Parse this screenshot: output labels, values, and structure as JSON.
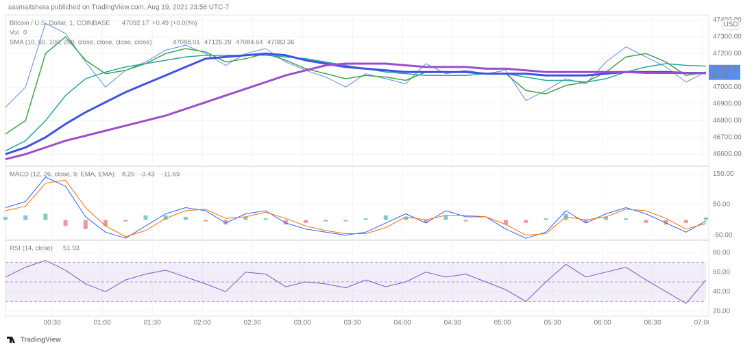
{
  "header": {
    "publisher": "sasmaitshera published on TradingView.com, Aug 19, 2021 23:56 UTC-7"
  },
  "footer": {
    "brand": "TradingView"
  },
  "time_axis": {
    "x": [
      2,
      14,
      26,
      38,
      50,
      62,
      74,
      86,
      98,
      110,
      122,
      134,
      146,
      158,
      170,
      182,
      194,
      206,
      218,
      230,
      242,
      254,
      266,
      278,
      290,
      302,
      314,
      326,
      338,
      350,
      362,
      374,
      386,
      398,
      410,
      422
    ],
    "xlim": [
      2,
      422
    ],
    "xticks": [
      {
        "value": 30,
        "label": "00:30"
      },
      {
        "value": 60,
        "label": "01:00"
      },
      {
        "value": 90,
        "label": "01:30"
      },
      {
        "value": 120,
        "label": "02:00"
      },
      {
        "value": 150,
        "label": "02:30"
      },
      {
        "value": 180,
        "label": "03:00"
      },
      {
        "value": 210,
        "label": "03:30"
      },
      {
        "value": 240,
        "label": "04:00"
      },
      {
        "value": 270,
        "label": "04:30"
      },
      {
        "value": 300,
        "label": "05:00"
      },
      {
        "value": 330,
        "label": "05:30"
      },
      {
        "value": 360,
        "label": "06:00"
      },
      {
        "value": 390,
        "label": "06:30"
      },
      {
        "value": 420,
        "label": "07:00"
      }
    ],
    "grid": true
  },
  "chart_data": [
    {
      "type": "line",
      "symbol": "Bitcoin / U.S. Dollar, 1, COINBASE",
      "change": "+0.49 (+0.00%)",
      "volume_label": "Vol",
      "volume_value": 0,
      "indicator": "SMA (10, 50, 100, 200, close, close, close, close)",
      "currency": "USD",
      "price_tag_time": "00:58",
      "ylim": [
        46540,
        47430
      ],
      "yticks": [
        {
          "value": 46600,
          "label": "46600.00"
        },
        {
          "value": 46700,
          "label": "46700.00"
        },
        {
          "value": 46800,
          "label": "46800.00"
        },
        {
          "value": 46900,
          "label": "46900.00"
        },
        {
          "value": 47000,
          "label": "47000.00"
        },
        {
          "value": 47200,
          "label": "47200.00"
        },
        {
          "value": 47300,
          "label": "47300.00"
        },
        {
          "value": 47400,
          "label": "47400.00"
        }
      ],
      "series": [
        {
          "color": "#5b8def",
          "width": 1,
          "values": [
            46880,
            47000,
            47380,
            47320,
            47150,
            47000,
            47100,
            47150,
            47220,
            47250,
            47200,
            47130,
            47200,
            47230,
            47150,
            47100,
            47060,
            47000,
            47080,
            47050,
            47020,
            47140,
            47080,
            47100,
            47080,
            47100,
            46920,
            46980,
            47050,
            47020,
            47150,
            47240,
            47180,
            47120,
            47030,
            47092.17
          ]
        },
        {
          "color": "#43a047",
          "width": 1.5,
          "values": [
            46720,
            46800,
            47200,
            47300,
            47160,
            47080,
            47100,
            47140,
            47200,
            47230,
            47210,
            47150,
            47170,
            47200,
            47160,
            47110,
            47080,
            47050,
            47070,
            47060,
            47040,
            47090,
            47090,
            47090,
            47080,
            47080,
            46980,
            46960,
            47010,
            47030,
            47090,
            47180,
            47200,
            47150,
            47070,
            47088.01
          ]
        },
        {
          "color": "#26a69a",
          "width": 1.5,
          "values": [
            46620,
            46680,
            46800,
            46950,
            47050,
            47090,
            47120,
            47140,
            47160,
            47180,
            47190,
            47190,
            47190,
            47190,
            47180,
            47170,
            47150,
            47130,
            47110,
            47090,
            47080,
            47070,
            47070,
            47070,
            47080,
            47080,
            47060,
            47040,
            47040,
            47030,
            47050,
            47090,
            47120,
            47140,
            47130,
            47125.29
          ]
        },
        {
          "color": "#3f51e6",
          "width": 3,
          "values": [
            46600,
            46640,
            46700,
            46780,
            46850,
            46910,
            46970,
            47020,
            47070,
            47120,
            47170,
            47180,
            47190,
            47200,
            47190,
            47160,
            47140,
            47120,
            47110,
            47100,
            47090,
            47090,
            47090,
            47090,
            47080,
            47080,
            47080,
            47070,
            47070,
            47070,
            47080,
            47090,
            47090,
            47090,
            47085,
            47084.64
          ]
        },
        {
          "color": "#9c4dcc",
          "width": 3,
          "values": [
            46570,
            46600,
            46640,
            46680,
            46710,
            46740,
            46770,
            46800,
            46830,
            46870,
            46910,
            46950,
            46990,
            47030,
            47070,
            47100,
            47130,
            47140,
            47140,
            47140,
            47130,
            47120,
            47120,
            47120,
            47110,
            47110,
            47100,
            47090,
            47090,
            47090,
            47090,
            47090,
            47085,
            47085,
            47084,
            47083.36
          ]
        }
      ]
    },
    {
      "type": "combo",
      "indicator": "MACD (12, 26, close, 9, EMA, EMA)",
      "ylim": [
        -64,
        171
      ],
      "yticks": [
        {
          "value": 150,
          "label": "150.00"
        },
        {
          "value": 50,
          "label": "50.00"
        },
        {
          "value": -50,
          "label": "-50.00"
        }
      ],
      "series": [
        {
          "style": "histogram",
          "color": "#80cbc4",
          "negative_color": "#ef9a9a",
          "values": [
            10,
            15,
            20,
            -20,
            -30,
            -20,
            -5,
            15,
            15,
            10,
            -5,
            -15,
            10,
            5,
            -15,
            -10,
            -5,
            -5,
            5,
            15,
            10,
            -10,
            15,
            -5,
            0,
            -15,
            -10,
            5,
            20,
            -10,
            10,
            5,
            -10,
            -15,
            -10,
            8.26
          ]
        },
        {
          "style": "line",
          "color": "#2962ff",
          "width": 1,
          "values": [
            40,
            60,
            140,
            110,
            10,
            -40,
            -60,
            -20,
            20,
            40,
            30,
            -10,
            20,
            30,
            -10,
            -30,
            -40,
            -50,
            -40,
            -10,
            20,
            -10,
            30,
            10,
            10,
            -30,
            -60,
            -40,
            30,
            -10,
            20,
            40,
            20,
            -10,
            -40,
            -3.43
          ]
        },
        {
          "style": "line",
          "color": "#ff6d00",
          "width": 1,
          "values": [
            30,
            45,
            120,
            130,
            40,
            -20,
            -55,
            -35,
            5,
            30,
            35,
            5,
            10,
            25,
            5,
            -20,
            -35,
            -45,
            -45,
            -25,
            10,
            0,
            15,
            15,
            10,
            -15,
            -50,
            -45,
            10,
            0,
            10,
            35,
            30,
            5,
            -30,
            -11.69
          ]
        }
      ]
    },
    {
      "type": "line",
      "indicator": "RSI (14, close)",
      "ylim": [
        15,
        92
      ],
      "yticks": [
        {
          "value": 80,
          "label": "80.00"
        },
        {
          "value": 60,
          "label": "60.00"
        },
        {
          "value": 40,
          "label": "40.00"
        },
        {
          "value": 20,
          "label": "20.00"
        }
      ],
      "bands": [
        70,
        50,
        30
      ],
      "band_color": "#7e57c2",
      "series": [
        {
          "color": "#7e57c2",
          "width": 1,
          "values": [
            55,
            65,
            72,
            62,
            48,
            40,
            52,
            58,
            62,
            55,
            48,
            40,
            60,
            58,
            45,
            50,
            48,
            44,
            52,
            45,
            50,
            60,
            55,
            58,
            50,
            42,
            30,
            50,
            68,
            55,
            60,
            65,
            52,
            40,
            28,
            51.93
          ]
        }
      ]
    }
  ]
}
